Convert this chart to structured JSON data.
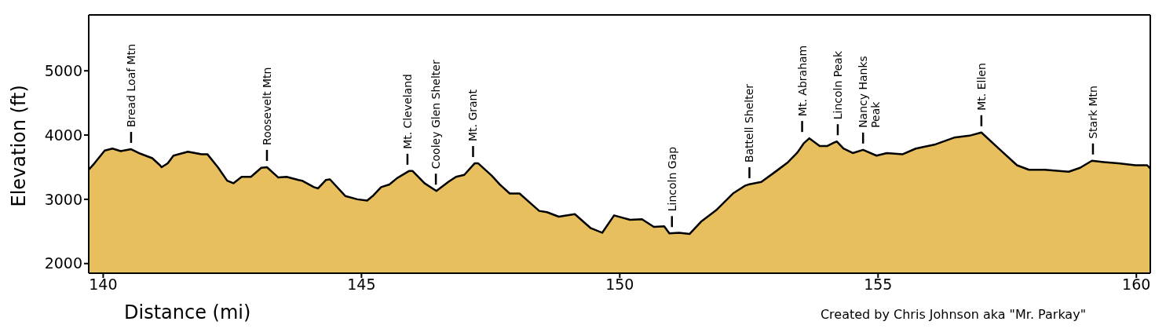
{
  "chart_data": {
    "type": "area",
    "xlabel": "Distance (mi)",
    "ylabel": "Elevation (ft)",
    "x": [
      139.72,
      139.83,
      140.03,
      140.18,
      140.34,
      140.54,
      140.72,
      140.95,
      141.1,
      141.13,
      141.25,
      141.36,
      141.64,
      141.91,
      142.02,
      142.22,
      142.4,
      142.52,
      142.68,
      142.86,
      143.06,
      143.17,
      143.39,
      143.55,
      143.78,
      143.85,
      144.08,
      144.16,
      144.31,
      144.39,
      144.69,
      144.92,
      145.11,
      145.23,
      145.38,
      145.54,
      145.69,
      145.92,
      145.99,
      146.22,
      146.45,
      146.68,
      146.83,
      146.99,
      147.19,
      147.26,
      147.52,
      147.68,
      147.87,
      148.06,
      148.44,
      148.59,
      148.82,
      149.13,
      149.44,
      149.66,
      149.89,
      150.2,
      150.43,
      150.66,
      150.86,
      150.96,
      151.15,
      151.35,
      151.57,
      151.88,
      152.19,
      152.42,
      152.49,
      152.74,
      153.03,
      153.26,
      153.33,
      153.44,
      153.56,
      153.67,
      153.87,
      154.02,
      154.14,
      154.2,
      154.33,
      154.51,
      154.71,
      154.97,
      155.17,
      155.47,
      155.73,
      156.09,
      156.47,
      156.77,
      157.0,
      157.31,
      157.69,
      157.92,
      158.23,
      158.69,
      158.91,
      159.14,
      159.37,
      159.65,
      159.98,
      160.21,
      160.27
    ],
    "series": [
      {
        "color": "#e8bf5f",
        "values": [
          3460,
          3560,
          3760,
          3790,
          3750,
          3780,
          3710,
          3640,
          3530,
          3500,
          3560,
          3680,
          3740,
          3700,
          3700,
          3500,
          3290,
          3250,
          3350,
          3350,
          3490,
          3500,
          3340,
          3350,
          3300,
          3290,
          3190,
          3170,
          3300,
          3310,
          3050,
          3000,
          2980,
          3060,
          3190,
          3230,
          3330,
          3440,
          3440,
          3250,
          3130,
          3270,
          3350,
          3380,
          3560,
          3560,
          3370,
          3230,
          3090,
          3090,
          2820,
          2800,
          2730,
          2770,
          2550,
          2480,
          2750,
          2680,
          2690,
          2570,
          2580,
          2470,
          2480,
          2460,
          2650,
          2840,
          3090,
          3210,
          3230,
          3270,
          3440,
          3580,
          3640,
          3730,
          3870,
          3950,
          3830,
          3830,
          3880,
          3900,
          3790,
          3720,
          3770,
          3680,
          3720,
          3700,
          3790,
          3850,
          3960,
          3990,
          4040,
          3810,
          3530,
          3460,
          3460,
          3430,
          3490,
          3600,
          3580,
          3560,
          3530,
          3530,
          3480
        ]
      }
    ],
    "xlim": [
      139.72,
      160.27
    ],
    "ylim": [
      1850,
      5870
    ],
    "xticks": [
      140,
      145,
      150,
      155,
      160
    ],
    "yticks": [
      2000,
      3000,
      4000,
      5000
    ],
    "grid": false,
    "legend": false,
    "annotations": [
      {
        "text": "Bread Loaf Mtn",
        "x": 140.54,
        "y": 3780
      },
      {
        "text": "Roosevelt Mtn",
        "x": 143.17,
        "y": 3500
      },
      {
        "text": "Mt. Cleveland",
        "x": 145.89,
        "y": 3440
      },
      {
        "text": "Cooley Glen Shelter",
        "x": 146.44,
        "y": 3130
      },
      {
        "text": "Mt. Grant",
        "x": 147.16,
        "y": 3560
      },
      {
        "text": "Lincoln Gap",
        "x": 151.01,
        "y": 2470
      },
      {
        "text": "Battell Shelter",
        "x": 152.51,
        "y": 3230
      },
      {
        "text": "Mt. Abraham",
        "x": 153.53,
        "y": 3950
      },
      {
        "text": "Lincoln Peak",
        "x": 154.22,
        "y": 3900
      },
      {
        "text": "Nancy Hanks\nPeak",
        "x": 154.71,
        "y": 3770
      },
      {
        "text": "Mt. Ellen",
        "x": 157.0,
        "y": 4040
      },
      {
        "text": "Stark Mtn",
        "x": 159.16,
        "y": 3600
      },
      "Created by Chris Johnson aka \"Mr. Parkay\""
    ]
  }
}
